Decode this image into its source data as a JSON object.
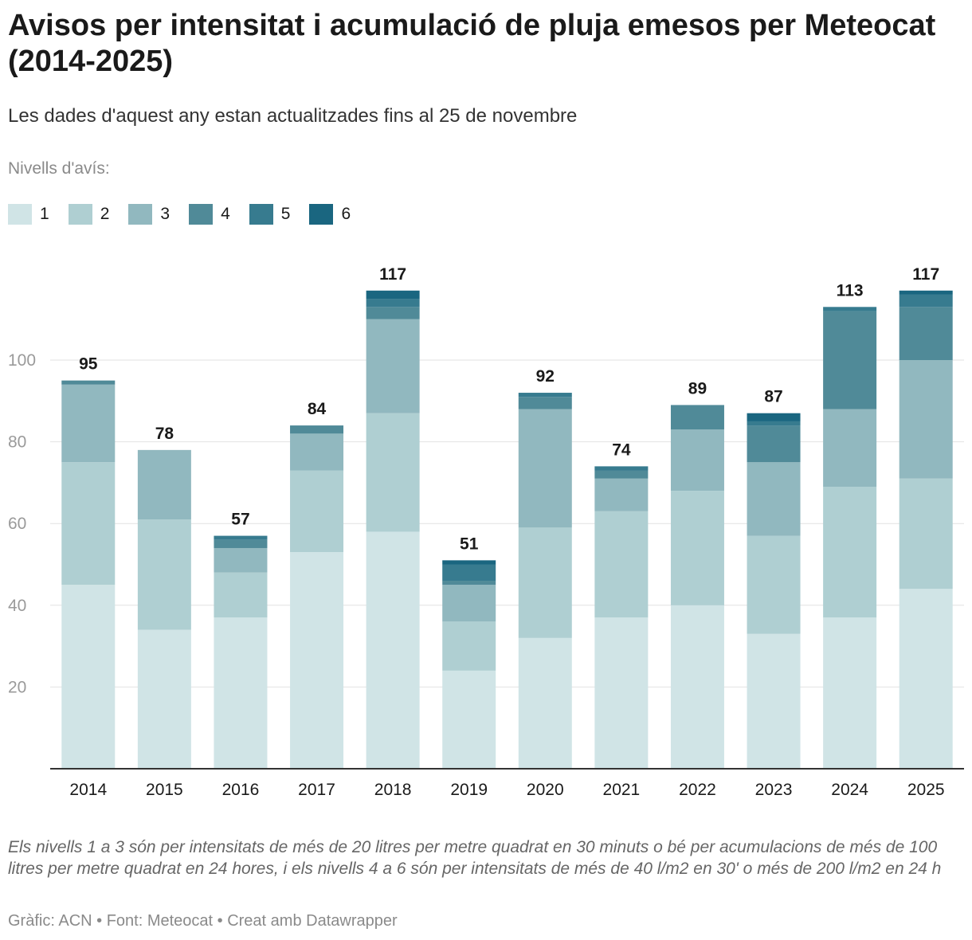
{
  "title": "Avisos per intensitat i acumulació de pluja emesos per Meteocat (2014-2025)",
  "subtitle": "Les dades d'aquest any estan actualitzades fins al 25 de novembre",
  "legend_title": "Nivells d'avís:",
  "note": "Els nivells 1 a 3 són per intensitats de més de 20 litres per metre quadrat en 30 minuts o bé per acumulacions de més de 100 litres per metre quadrat en 24 hores, i els nivells 4 a 6 són per intensitats de més de 40 l/m2 en 30' o més de 200 l/m2 en 24 h",
  "credits": "Gràfic: ACN • Font: Meteocat • Creat amb Datawrapper",
  "chart_data": {
    "type": "bar",
    "stacked": true,
    "categories": [
      "2014",
      "2015",
      "2016",
      "2017",
      "2018",
      "2019",
      "2020",
      "2021",
      "2022",
      "2023",
      "2024",
      "2025"
    ],
    "series": [
      {
        "name": "1",
        "color": "#d0e4e6",
        "values": [
          45,
          34,
          37,
          53,
          58,
          24,
          32,
          37,
          40,
          33,
          37,
          44
        ]
      },
      {
        "name": "2",
        "color": "#afcfd2",
        "values": [
          30,
          27,
          11,
          20,
          29,
          12,
          27,
          26,
          28,
          24,
          32,
          27
        ]
      },
      {
        "name": "3",
        "color": "#91b8bf",
        "values": [
          19,
          17,
          6,
          9,
          23,
          9,
          29,
          8,
          15,
          18,
          19,
          29
        ]
      },
      {
        "name": "4",
        "color": "#508a98",
        "values": [
          1,
          0,
          2,
          2,
          3,
          1,
          3,
          2,
          6,
          9,
          24,
          13
        ]
      },
      {
        "name": "5",
        "color": "#377b8f",
        "values": [
          0,
          0,
          1,
          0,
          2,
          4,
          1,
          1,
          0,
          1,
          1,
          3
        ]
      },
      {
        "name": "6",
        "color": "#1a6680",
        "values": [
          0,
          0,
          0,
          0,
          2,
          1,
          0,
          0,
          0,
          2,
          0,
          1
        ]
      }
    ],
    "totals": [
      "95",
      "78",
      "57",
      "84",
      "117",
      "51",
      "92",
      "74",
      "89",
      "87",
      "113",
      "117"
    ],
    "y_ticks": [
      "20",
      "40",
      "60",
      "80",
      "100"
    ],
    "ylim": [
      0,
      117
    ],
    "grid": true,
    "legend_position": "top-left"
  }
}
